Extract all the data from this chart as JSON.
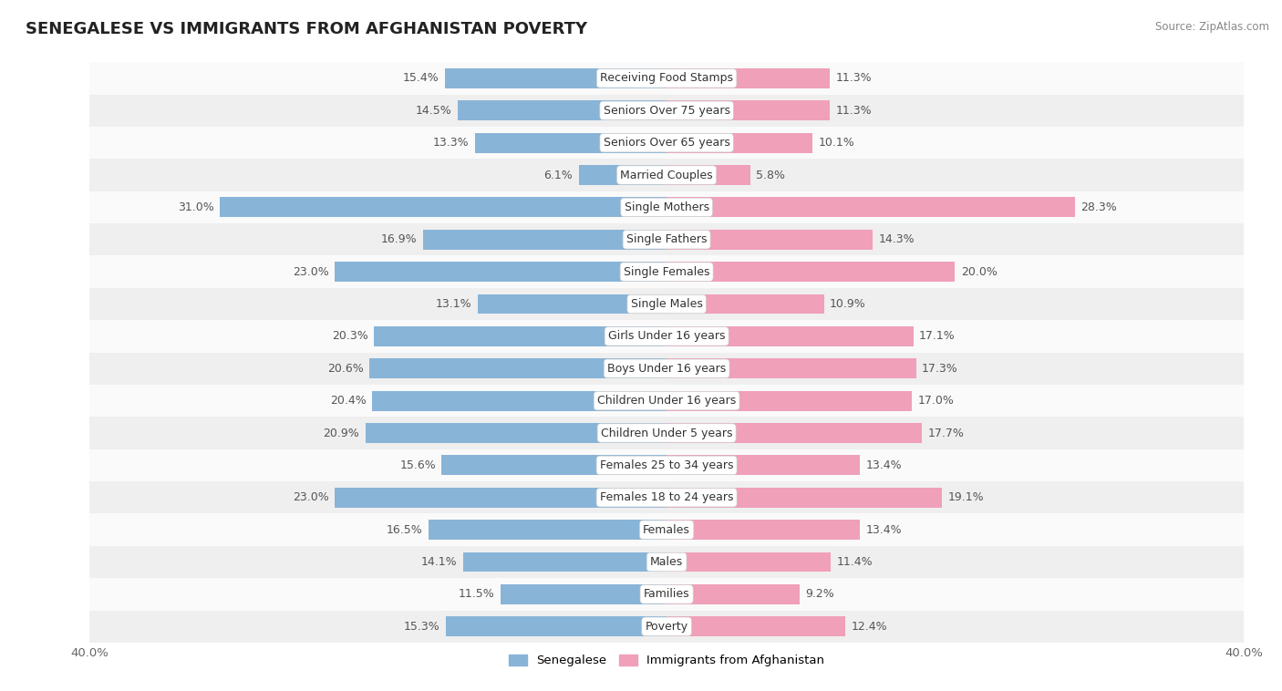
{
  "title": "SENEGALESE VS IMMIGRANTS FROM AFGHANISTAN POVERTY",
  "source": "Source: ZipAtlas.com",
  "categories": [
    "Poverty",
    "Families",
    "Males",
    "Females",
    "Females 18 to 24 years",
    "Females 25 to 34 years",
    "Children Under 5 years",
    "Children Under 16 years",
    "Boys Under 16 years",
    "Girls Under 16 years",
    "Single Males",
    "Single Females",
    "Single Fathers",
    "Single Mothers",
    "Married Couples",
    "Seniors Over 65 years",
    "Seniors Over 75 years",
    "Receiving Food Stamps"
  ],
  "senegalese": [
    15.3,
    11.5,
    14.1,
    16.5,
    23.0,
    15.6,
    20.9,
    20.4,
    20.6,
    20.3,
    13.1,
    23.0,
    16.9,
    31.0,
    6.1,
    13.3,
    14.5,
    15.4
  ],
  "afghanistan": [
    12.4,
    9.2,
    11.4,
    13.4,
    19.1,
    13.4,
    17.7,
    17.0,
    17.3,
    17.1,
    10.9,
    20.0,
    14.3,
    28.3,
    5.8,
    10.1,
    11.3,
    11.3
  ],
  "blue_color": "#88B4D8",
  "pink_color": "#F0A0B8",
  "row_bg_even": "#EFEFEF",
  "row_bg_odd": "#FAFAFA",
  "axis_max": 40.0,
  "bar_height": 0.62,
  "label_fontsize": 9.0,
  "value_fontsize": 9.0,
  "title_fontsize": 13,
  "legend_blue": "Senegalese",
  "legend_pink": "Immigrants from Afghanistan"
}
